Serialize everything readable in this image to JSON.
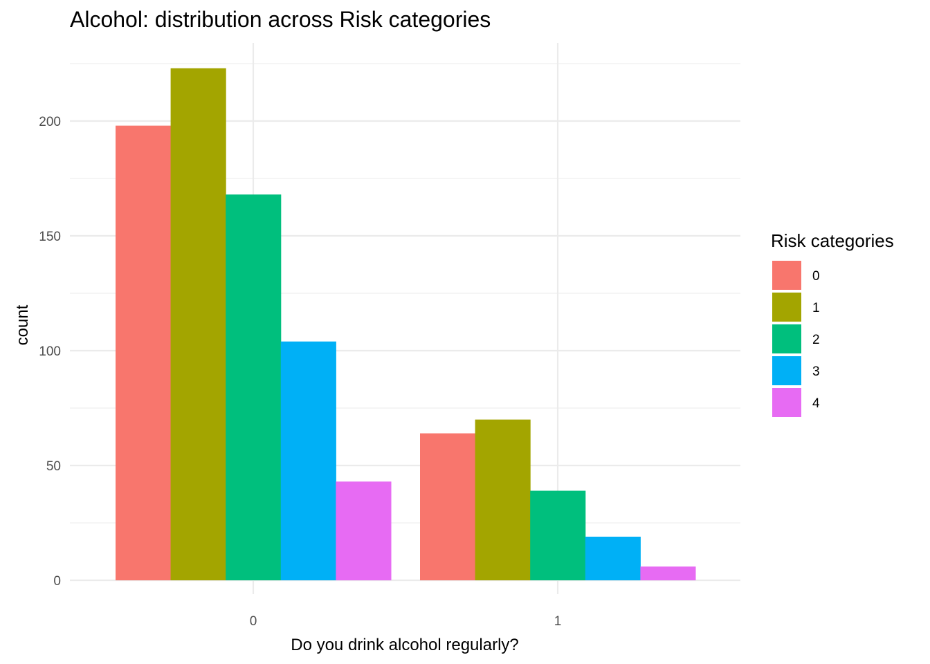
{
  "chart_data": {
    "type": "bar",
    "title": "Alcohol: distribution across Risk categories",
    "xlabel": "Do you drink alcohol regularly?",
    "ylabel": "count",
    "categories": [
      "0",
      "1"
    ],
    "y_ticks": [
      "0",
      "50",
      "100",
      "150",
      "200"
    ],
    "ylim": [
      0,
      230
    ],
    "grid": true,
    "legend": {
      "title": "Risk categories",
      "placement": "right"
    },
    "series": [
      {
        "name": "0",
        "color": "#F8766D",
        "values": [
          198,
          64
        ]
      },
      {
        "name": "1",
        "color": "#A3A500",
        "values": [
          223,
          70
        ]
      },
      {
        "name": "2",
        "color": "#00BF7D",
        "values": [
          168,
          39
        ]
      },
      {
        "name": "3",
        "color": "#00B0F6",
        "values": [
          104,
          19
        ]
      },
      {
        "name": "4",
        "color": "#E76BF3",
        "values": [
          43,
          6
        ]
      }
    ]
  }
}
